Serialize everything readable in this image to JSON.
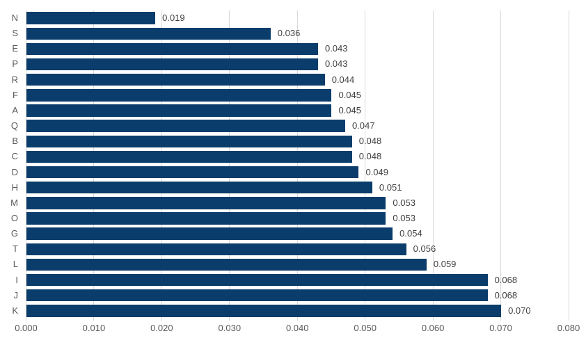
{
  "chart_data": {
    "type": "bar",
    "orientation": "horizontal",
    "title": "",
    "xlabel": "",
    "ylabel": "",
    "categories": [
      "N",
      "S",
      "E",
      "P",
      "R",
      "F",
      "A",
      "Q",
      "B",
      "C",
      "D",
      "H",
      "M",
      "O",
      "G",
      "T",
      "L",
      "I",
      "J",
      "K"
    ],
    "values": [
      0.019,
      0.036,
      0.043,
      0.043,
      0.044,
      0.045,
      0.045,
      0.047,
      0.048,
      0.048,
      0.049,
      0.051,
      0.053,
      0.053,
      0.054,
      0.056,
      0.059,
      0.068,
      0.068,
      0.07
    ],
    "value_labels": [
      "0.019",
      "0.036",
      "0.043",
      "0.043",
      "0.044",
      "0.045",
      "0.045",
      "0.047",
      "0.048",
      "0.048",
      "0.049",
      "0.051",
      "0.053",
      "0.053",
      "0.054",
      "0.056",
      "0.059",
      "0.068",
      "0.068",
      "0.070"
    ],
    "x_ticks": [
      "0.000",
      "0.010",
      "0.020",
      "0.030",
      "0.040",
      "0.050",
      "0.060",
      "0.070",
      "0.080"
    ],
    "x_tick_values": [
      0.0,
      0.01,
      0.02,
      0.03,
      0.04,
      0.05,
      0.06,
      0.07,
      0.08
    ],
    "xlim": [
      0.0,
      0.08
    ],
    "grid": true,
    "legend": false,
    "bar_color": "#0a3d6b",
    "gridline_color": "#d9d9d9",
    "axis_label_color": "#595959",
    "value_label_color": "#404040",
    "background_color": "#ffffff"
  }
}
